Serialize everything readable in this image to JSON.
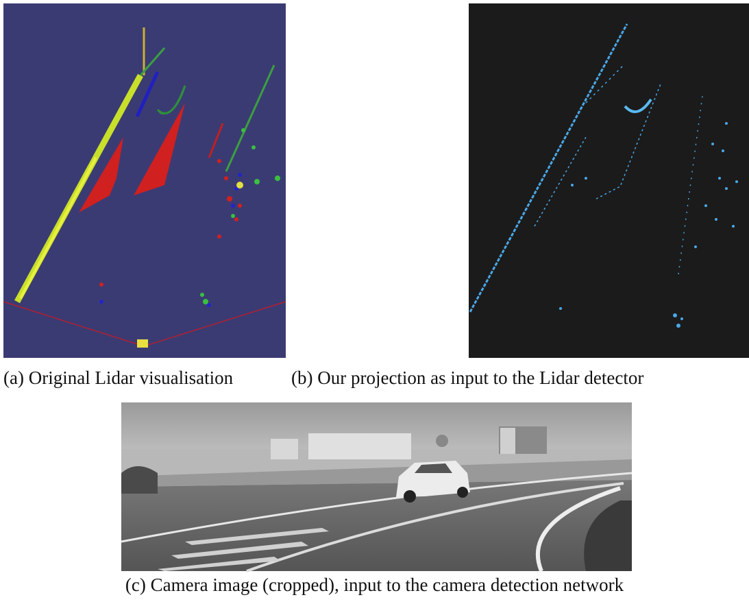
{
  "figure": {
    "captions": [
      "(a) Original Lidar visualisation",
      "(b) Our projection as input to the Lidar detector",
      "(c) Camera image (cropped), input to the camera detection network"
    ]
  }
}
